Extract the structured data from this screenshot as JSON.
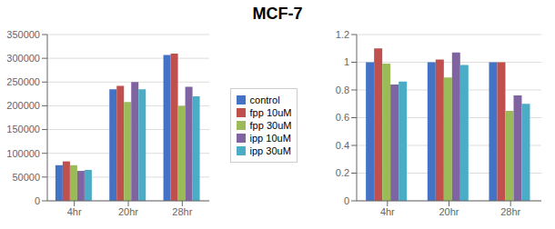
{
  "title": "MCF-7",
  "chart_data": [
    {
      "type": "bar",
      "categories": [
        "4hr",
        "20hr",
        "28hr"
      ],
      "series": [
        {
          "name": "control",
          "color": "#4472c4",
          "values": [
            75000,
            235000,
            307000
          ]
        },
        {
          "name": "fpp 10uM",
          "color": "#c0504d",
          "values": [
            83000,
            242000,
            310000
          ]
        },
        {
          "name": "fpp 30uM",
          "color": "#9bbb59",
          "values": [
            75000,
            208000,
            200000
          ]
        },
        {
          "name": "ipp 10uM",
          "color": "#8064a2",
          "values": [
            63000,
            250000,
            240000
          ]
        },
        {
          "name": "ipp 30uM",
          "color": "#4bacc6",
          "values": [
            65000,
            235000,
            220000
          ]
        }
      ],
      "ylim": [
        0,
        350000
      ],
      "yticks": [
        0,
        50000,
        100000,
        150000,
        200000,
        250000,
        300000,
        350000
      ],
      "grid": true,
      "legend": "right"
    },
    {
      "type": "bar",
      "categories": [
        "4hr",
        "20hr",
        "28hr"
      ],
      "series": [
        {
          "name": "control",
          "color": "#4472c4",
          "values": [
            1.0,
            1.0,
            1.0
          ]
        },
        {
          "name": "fpp 10uM",
          "color": "#c0504d",
          "values": [
            1.1,
            1.02,
            1.0
          ]
        },
        {
          "name": "fpp 30uM",
          "color": "#9bbb59",
          "values": [
            0.99,
            0.89,
            0.65
          ]
        },
        {
          "name": "ipp 10uM",
          "color": "#8064a2",
          "values": [
            0.84,
            1.07,
            0.76
          ]
        },
        {
          "name": "ipp 30uM",
          "color": "#4bacc6",
          "values": [
            0.86,
            0.98,
            0.7
          ]
        }
      ],
      "ylim": [
        0,
        1.2
      ],
      "yticks": [
        0,
        0.2,
        0.4,
        0.6,
        0.8,
        1.0,
        1.2
      ],
      "grid": true
    }
  ]
}
